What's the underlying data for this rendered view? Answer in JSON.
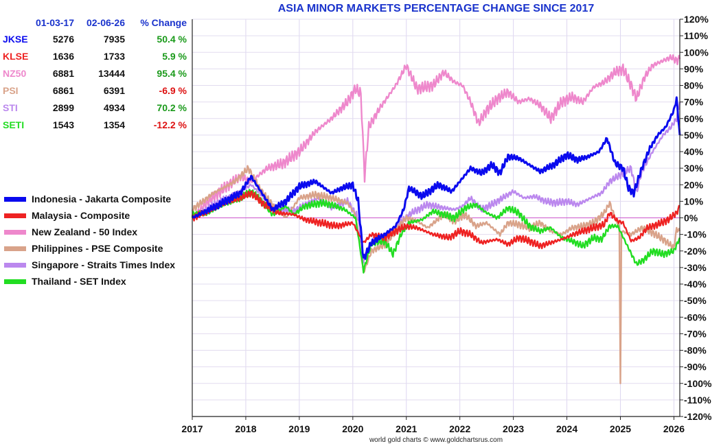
{
  "chart_data": {
    "type": "line",
    "title": "ASIA MINOR MARKETS PERCENTAGE CHANGE SINCE 2017",
    "xlabel": "",
    "ylabel": "",
    "xlim": [
      2017.0,
      2026.11
    ],
    "ylim": [
      -120,
      120
    ],
    "x_ticks": [
      "2017",
      "2018",
      "2019",
      "2020",
      "2021",
      "2022",
      "2023",
      "2024",
      "2025",
      "2026"
    ],
    "y_ticks": [
      "120%",
      "110%",
      "100%",
      "90%",
      "80%",
      "70%",
      "60%",
      "50%",
      "40%",
      "30%",
      "20%",
      "10%",
      "0%",
      "-10%",
      "-20%",
      "-30%",
      "-40%",
      "-50%",
      "-60%",
      "-70%",
      "-80%",
      "-90%",
      "-100%",
      "-110%",
      "-120%"
    ],
    "zero_line_color": "#cc55cc",
    "series": [
      {
        "name": "Indonesia - Jakarta Composite",
        "color": "#0a0aee",
        "points": [
          [
            2017.0,
            0
          ],
          [
            2017.5,
            8
          ],
          [
            2017.9,
            15
          ],
          [
            2018.1,
            25
          ],
          [
            2018.3,
            15
          ],
          [
            2018.5,
            5
          ],
          [
            2018.75,
            10
          ],
          [
            2019.0,
            19
          ],
          [
            2019.3,
            22
          ],
          [
            2019.6,
            15
          ],
          [
            2019.8,
            18
          ],
          [
            2020.0,
            20
          ],
          [
            2020.1,
            10
          ],
          [
            2020.2,
            -25
          ],
          [
            2020.35,
            -15
          ],
          [
            2020.6,
            -10
          ],
          [
            2020.8,
            -5
          ],
          [
            2020.95,
            5
          ],
          [
            2021.05,
            18
          ],
          [
            2021.3,
            13
          ],
          [
            2021.6,
            20
          ],
          [
            2021.85,
            16
          ],
          [
            2022.0,
            22
          ],
          [
            2022.2,
            30
          ],
          [
            2022.4,
            27
          ],
          [
            2022.6,
            32
          ],
          [
            2022.75,
            27
          ],
          [
            2022.9,
            37
          ],
          [
            2023.1,
            36
          ],
          [
            2023.3,
            32
          ],
          [
            2023.5,
            28
          ],
          [
            2023.75,
            32
          ],
          [
            2024.0,
            38
          ],
          [
            2024.2,
            35
          ],
          [
            2024.4,
            37
          ],
          [
            2024.6,
            40
          ],
          [
            2024.75,
            48
          ],
          [
            2024.9,
            33
          ],
          [
            2025.05,
            30
          ],
          [
            2025.15,
            18
          ],
          [
            2025.25,
            15
          ],
          [
            2025.4,
            30
          ],
          [
            2025.55,
            42
          ],
          [
            2025.7,
            50
          ],
          [
            2025.85,
            55
          ],
          [
            2026.0,
            65
          ],
          [
            2026.05,
            72
          ],
          [
            2026.11,
            50
          ]
        ]
      },
      {
        "name": "Malaysia - Composite",
        "color": "#ee2222",
        "points": [
          [
            2017.0,
            0
          ],
          [
            2017.5,
            7
          ],
          [
            2017.9,
            12
          ],
          [
            2018.1,
            15
          ],
          [
            2018.35,
            8
          ],
          [
            2018.6,
            3
          ],
          [
            2018.9,
            2
          ],
          [
            2019.1,
            -1
          ],
          [
            2019.4,
            -3
          ],
          [
            2019.7,
            -5
          ],
          [
            2020.0,
            -3
          ],
          [
            2020.2,
            -15
          ],
          [
            2020.35,
            -10
          ],
          [
            2020.6,
            -12
          ],
          [
            2020.8,
            -8
          ],
          [
            2021.0,
            -5
          ],
          [
            2021.2,
            -6
          ],
          [
            2021.5,
            -10
          ],
          [
            2021.8,
            -12
          ],
          [
            2022.0,
            -8
          ],
          [
            2022.2,
            -10
          ],
          [
            2022.4,
            -15
          ],
          [
            2022.7,
            -13
          ],
          [
            2022.9,
            -16
          ],
          [
            2023.1,
            -12
          ],
          [
            2023.3,
            -14
          ],
          [
            2023.5,
            -17
          ],
          [
            2023.7,
            -15
          ],
          [
            2023.9,
            -13
          ],
          [
            2024.2,
            -9
          ],
          [
            2024.5,
            -6
          ],
          [
            2024.7,
            -4
          ],
          [
            2024.8,
            3
          ],
          [
            2024.95,
            -2
          ],
          [
            2025.05,
            -3
          ],
          [
            2025.2,
            -14
          ],
          [
            2025.35,
            -12
          ],
          [
            2025.5,
            -6
          ],
          [
            2025.7,
            -4
          ],
          [
            2025.9,
            -1
          ],
          [
            2026.05,
            3
          ],
          [
            2026.11,
            7
          ]
        ]
      },
      {
        "name": "New Zealand - 50 Index",
        "color": "#ee88cc",
        "points": [
          [
            2017.0,
            0
          ],
          [
            2017.3,
            10
          ],
          [
            2017.6,
            18
          ],
          [
            2017.9,
            25
          ],
          [
            2018.1,
            22
          ],
          [
            2018.4,
            30
          ],
          [
            2018.7,
            33
          ],
          [
            2019.0,
            40
          ],
          [
            2019.3,
            52
          ],
          [
            2019.6,
            60
          ],
          [
            2019.9,
            70
          ],
          [
            2020.05,
            78
          ],
          [
            2020.15,
            75
          ],
          [
            2020.22,
            25
          ],
          [
            2020.3,
            55
          ],
          [
            2020.5,
            66
          ],
          [
            2020.8,
            80
          ],
          [
            2021.0,
            92
          ],
          [
            2021.1,
            85
          ],
          [
            2021.2,
            78
          ],
          [
            2021.5,
            80
          ],
          [
            2021.7,
            88
          ],
          [
            2021.9,
            82
          ],
          [
            2022.05,
            80
          ],
          [
            2022.2,
            70
          ],
          [
            2022.35,
            57
          ],
          [
            2022.5,
            65
          ],
          [
            2022.7,
            72
          ],
          [
            2022.9,
            76
          ],
          [
            2023.1,
            70
          ],
          [
            2023.3,
            72
          ],
          [
            2023.5,
            68
          ],
          [
            2023.7,
            60
          ],
          [
            2023.9,
            70
          ],
          [
            2024.1,
            73
          ],
          [
            2024.3,
            70
          ],
          [
            2024.5,
            79
          ],
          [
            2024.7,
            82
          ],
          [
            2024.9,
            88
          ],
          [
            2025.05,
            90
          ],
          [
            2025.2,
            80
          ],
          [
            2025.3,
            72
          ],
          [
            2025.45,
            85
          ],
          [
            2025.6,
            92
          ],
          [
            2025.8,
            95
          ],
          [
            2025.95,
            97
          ],
          [
            2026.05,
            95
          ],
          [
            2026.11,
            96
          ]
        ]
      },
      {
        "name": "Philippines - PSE Composite",
        "color": "#d9a38a",
        "points": [
          [
            2017.0,
            5
          ],
          [
            2017.4,
            15
          ],
          [
            2017.8,
            22
          ],
          [
            2018.05,
            30
          ],
          [
            2018.25,
            18
          ],
          [
            2018.5,
            8
          ],
          [
            2018.75,
            0
          ],
          [
            2019.0,
            12
          ],
          [
            2019.3,
            14
          ],
          [
            2019.6,
            12
          ],
          [
            2019.9,
            9
          ],
          [
            2020.05,
            2
          ],
          [
            2020.2,
            -33
          ],
          [
            2020.35,
            -20
          ],
          [
            2020.6,
            -16
          ],
          [
            2020.8,
            -8
          ],
          [
            2021.0,
            0
          ],
          [
            2021.2,
            -2
          ],
          [
            2021.4,
            -6
          ],
          [
            2021.7,
            2
          ],
          [
            2021.9,
            -2
          ],
          [
            2022.1,
            2
          ],
          [
            2022.3,
            -5
          ],
          [
            2022.5,
            -3
          ],
          [
            2022.75,
            -10
          ],
          [
            2022.9,
            -3
          ],
          [
            2023.1,
            -4
          ],
          [
            2023.3,
            -6
          ],
          [
            2023.5,
            -3
          ],
          [
            2023.7,
            -8
          ],
          [
            2023.9,
            -10
          ],
          [
            2024.1,
            -6
          ],
          [
            2024.3,
            -5
          ],
          [
            2024.5,
            -3
          ],
          [
            2024.7,
            3
          ],
          [
            2024.8,
            9
          ],
          [
            2024.9,
            0
          ],
          [
            2024.98,
            -5
          ],
          [
            2025.0,
            -100
          ],
          [
            2025.02,
            -8
          ],
          [
            2025.2,
            -10
          ],
          [
            2025.4,
            -6
          ],
          [
            2025.6,
            -9
          ],
          [
            2025.8,
            -13
          ],
          [
            2026.0,
            -18
          ],
          [
            2026.05,
            -7
          ],
          [
            2026.11,
            -8
          ]
        ]
      },
      {
        "name": "Singapore - Straits Times Index",
        "color": "#bb88ee",
        "points": [
          [
            2017.0,
            0
          ],
          [
            2017.4,
            8
          ],
          [
            2017.8,
            14
          ],
          [
            2018.1,
            20
          ],
          [
            2018.35,
            12
          ],
          [
            2018.6,
            5
          ],
          [
            2018.9,
            4
          ],
          [
            2019.1,
            8
          ],
          [
            2019.35,
            12
          ],
          [
            2019.6,
            6
          ],
          [
            2019.9,
            10
          ],
          [
            2020.1,
            0
          ],
          [
            2020.2,
            -25
          ],
          [
            2020.4,
            -12
          ],
          [
            2020.7,
            -10
          ],
          [
            2020.9,
            -2
          ],
          [
            2021.1,
            3
          ],
          [
            2021.4,
            8
          ],
          [
            2021.7,
            6
          ],
          [
            2021.9,
            5
          ],
          [
            2022.05,
            7
          ],
          [
            2022.2,
            12
          ],
          [
            2022.4,
            5
          ],
          [
            2022.6,
            8
          ],
          [
            2022.8,
            12
          ],
          [
            2023.0,
            16
          ],
          [
            2023.2,
            12
          ],
          [
            2023.4,
            13
          ],
          [
            2023.6,
            10
          ],
          [
            2023.8,
            9
          ],
          [
            2024.0,
            10
          ],
          [
            2024.2,
            8
          ],
          [
            2024.45,
            12
          ],
          [
            2024.65,
            15
          ],
          [
            2024.8,
            22
          ],
          [
            2024.95,
            25
          ],
          [
            2025.1,
            28
          ],
          [
            2025.2,
            30
          ],
          [
            2025.3,
            15
          ],
          [
            2025.4,
            28
          ],
          [
            2025.6,
            40
          ],
          [
            2025.8,
            50
          ],
          [
            2025.95,
            55
          ],
          [
            2026.05,
            60
          ],
          [
            2026.11,
            70
          ]
        ]
      },
      {
        "name": "Thailand - SET Index",
        "color": "#22dd22",
        "points": [
          [
            2017.0,
            2
          ],
          [
            2017.3,
            3
          ],
          [
            2017.6,
            8
          ],
          [
            2017.9,
            12
          ],
          [
            2018.1,
            16
          ],
          [
            2018.3,
            10
          ],
          [
            2018.5,
            2
          ],
          [
            2018.75,
            7
          ],
          [
            2018.9,
            2
          ],
          [
            2019.1,
            7
          ],
          [
            2019.4,
            9
          ],
          [
            2019.6,
            8
          ],
          [
            2019.85,
            5
          ],
          [
            2020.05,
            0
          ],
          [
            2020.2,
            -32
          ],
          [
            2020.35,
            -15
          ],
          [
            2020.6,
            -14
          ],
          [
            2020.75,
            -22
          ],
          [
            2020.9,
            -10
          ],
          [
            2021.05,
            -3
          ],
          [
            2021.3,
            -1
          ],
          [
            2021.5,
            4
          ],
          [
            2021.7,
            2
          ],
          [
            2021.9,
            0
          ],
          [
            2022.1,
            6
          ],
          [
            2022.3,
            8
          ],
          [
            2022.5,
            3
          ],
          [
            2022.7,
            0
          ],
          [
            2022.9,
            6
          ],
          [
            2023.1,
            3
          ],
          [
            2023.3,
            -5
          ],
          [
            2023.5,
            -8
          ],
          [
            2023.7,
            -6
          ],
          [
            2023.9,
            -12
          ],
          [
            2024.1,
            -14
          ],
          [
            2024.3,
            -17
          ],
          [
            2024.5,
            -12
          ],
          [
            2024.65,
            -13
          ],
          [
            2024.8,
            -5
          ],
          [
            2024.95,
            -5
          ],
          [
            2025.1,
            -15
          ],
          [
            2025.3,
            -28
          ],
          [
            2025.45,
            -25
          ],
          [
            2025.6,
            -20
          ],
          [
            2025.8,
            -22
          ],
          [
            2026.0,
            -20
          ],
          [
            2026.11,
            -12
          ]
        ]
      }
    ]
  },
  "table": {
    "date1": "01-03-17",
    "date2": "02-06-26",
    "change_header": "% Change",
    "rows": [
      {
        "symbol": "JKSE",
        "start": "5276",
        "end": "7935",
        "change": "50.4 %",
        "color": "#0a0aee",
        "change_color": "#1a9a1a"
      },
      {
        "symbol": "KLSE",
        "start": "1636",
        "end": "1733",
        "change": "5.9 %",
        "color": "#ee2222",
        "change_color": "#1a9a1a"
      },
      {
        "symbol": "NZ50",
        "start": "6881",
        "end": "13444",
        "change": "95.4 %",
        "color": "#ee88cc",
        "change_color": "#1a9a1a"
      },
      {
        "symbol": "PSI",
        "start": "6861",
        "end": "6391",
        "change": "-6.9 %",
        "color": "#d9a38a",
        "change_color": "#dd1111"
      },
      {
        "symbol": "STI",
        "start": "2899",
        "end": "4934",
        "change": "70.2 %",
        "color": "#bb88ee",
        "change_color": "#1a9a1a"
      },
      {
        "symbol": "SETI",
        "start": "1543",
        "end": "1354",
        "change": "-12.2 %",
        "color": "#22dd22",
        "change_color": "#dd1111"
      }
    ]
  },
  "footer": "world gold charts © www.goldchartsrus.com"
}
